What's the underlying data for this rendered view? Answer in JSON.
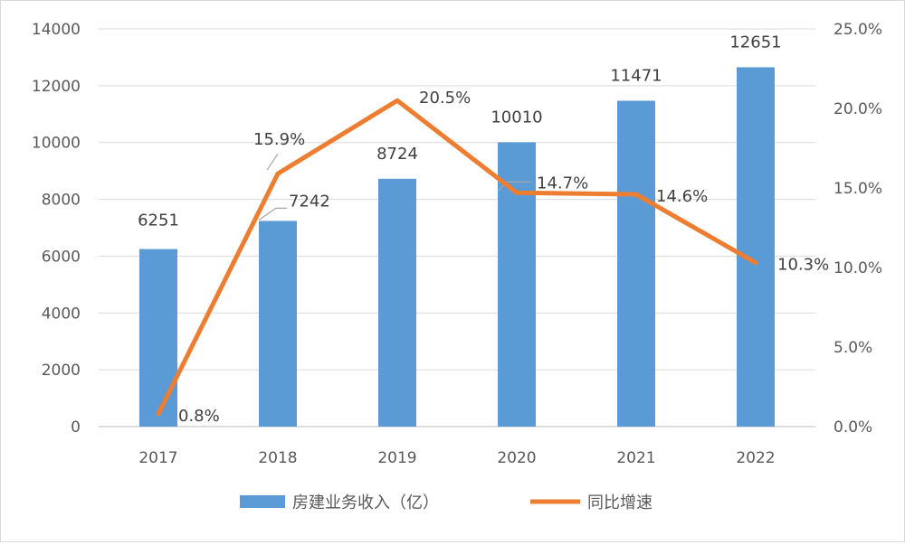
{
  "chart_data": {
    "type": "bar+line",
    "categories": [
      "2017",
      "2018",
      "2019",
      "2020",
      "2021",
      "2022"
    ],
    "series": [
      {
        "name": "房建业务收入（亿）",
        "type": "bar",
        "axis": "left",
        "values": [
          6251,
          7242,
          8724,
          10010,
          11471,
          12651
        ],
        "labels": [
          "6251",
          "7242",
          "8724",
          "10010",
          "11471",
          "12651"
        ],
        "color": "#5b9bd5"
      },
      {
        "name": "同比增速",
        "type": "line",
        "axis": "right",
        "values": [
          0.8,
          15.9,
          20.5,
          14.7,
          14.6,
          10.3
        ],
        "labels": [
          "0.8%",
          "15.9%",
          "20.5%",
          "14.7%",
          "14.6%",
          "10.3%"
        ],
        "color": "#ed7d31"
      }
    ],
    "y_left": {
      "min": 0,
      "max": 14000,
      "ticks": [
        "0",
        "2000",
        "4000",
        "6000",
        "8000",
        "10000",
        "12000",
        "14000"
      ]
    },
    "y_right": {
      "min": 0,
      "max": 25,
      "ticks": [
        "0.0%",
        "5.0%",
        "10.0%",
        "15.0%",
        "20.0%",
        "25.0%"
      ]
    },
    "grid": true,
    "legend_position": "bottom"
  }
}
